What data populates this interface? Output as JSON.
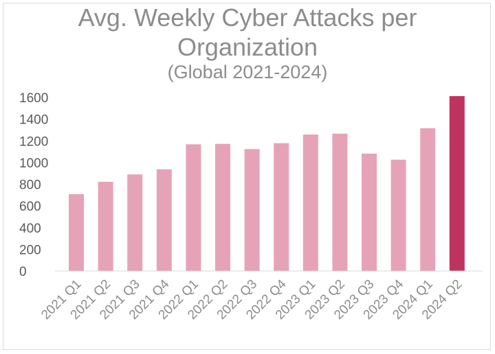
{
  "chart_data": {
    "type": "bar",
    "title_line1": "Avg. Weekly Cyber Attacks per",
    "title_line2": "Organization",
    "subtitle": "(Global 2021-2024)",
    "categories": [
      "2021 Q1",
      "2021 Q2",
      "2021 Q3",
      "2021 Q4",
      "2022 Q1",
      "2022 Q2",
      "2022 Q3",
      "2022 Q4",
      "2023 Q1",
      "2023 Q2",
      "2023 Q3",
      "2023 Q4",
      "2024 Q1",
      "2024 Q2"
    ],
    "values": [
      708,
      822,
      890,
      937,
      1168,
      1172,
      1124,
      1178,
      1258,
      1266,
      1082,
      1026,
      1316,
      1612
    ],
    "highlight_index": 13,
    "colors": {
      "bar": "#e6a3b8",
      "highlight": "#be3360",
      "axis": "#d9d9d9"
    },
    "yticks": [
      0,
      200,
      400,
      600,
      800,
      1000,
      1200,
      1400,
      1600
    ],
    "ylim": [
      0,
      1600
    ],
    "xlabel": "",
    "ylabel": "",
    "grid": false,
    "legend": false
  }
}
